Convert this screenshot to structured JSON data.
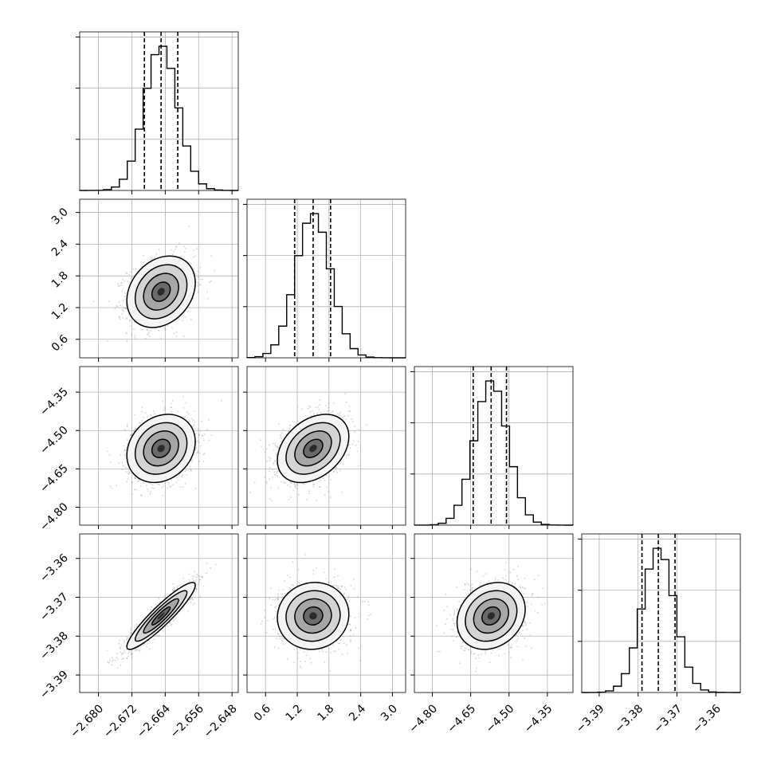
{
  "chart_data": {
    "type": "corner",
    "grid": true,
    "colors": {
      "line": "#000000",
      "grid": "#b0b0b0",
      "points": "#777777"
    },
    "parameters": [
      {
        "range": [
          -2.6845,
          -2.6465
        ],
        "ticks": [
          -2.68,
          -2.672,
          -2.664,
          -2.656,
          -2.648
        ],
        "tick_labels": [
          "−2.680",
          "−2.672",
          "−2.664",
          "−2.656",
          "−2.648"
        ],
        "center": -2.665,
        "sigma": 0.004,
        "quantiles": [
          -2.669,
          -2.665,
          -2.661
        ]
      },
      {
        "range": [
          0.25,
          3.25
        ],
        "ticks": [
          0.6,
          1.2,
          1.8,
          2.4,
          3.0
        ],
        "tick_labels": [
          "0.6",
          "1.2",
          "1.8",
          "2.4",
          "3.0"
        ],
        "center": 1.5,
        "sigma": 0.33,
        "quantiles": [
          1.15,
          1.5,
          1.83
        ]
      },
      {
        "range": [
          -4.87,
          -4.25
        ],
        "ticks": [
          -4.8,
          -4.65,
          -4.5,
          -4.35
        ],
        "tick_labels": [
          "−4.80",
          "−4.65",
          "−4.50",
          "−4.35"
        ],
        "center": -4.57,
        "sigma": 0.065,
        "quantiles": [
          -4.64,
          -4.57,
          -4.51
        ]
      },
      {
        "range": [
          -3.3945,
          -3.3537
        ],
        "ticks": [
          -3.39,
          -3.38,
          -3.37,
          -3.36
        ],
        "tick_labels": [
          "−3.39",
          "−3.38",
          "−3.37",
          "−3.36"
        ],
        "center": -3.3748,
        "sigma": 0.0042,
        "quantiles": [
          -3.379,
          -3.3748,
          -3.3705
        ]
      }
    ],
    "correlations": [
      {
        "pair": [
          1,
          0
        ],
        "rho": 0.25
      },
      {
        "pair": [
          2,
          0
        ],
        "rho": 0.2
      },
      {
        "pair": [
          2,
          1
        ],
        "rho": 0.35
      },
      {
        "pair": [
          3,
          0
        ],
        "rho": 0.92
      },
      {
        "pair": [
          3,
          1
        ],
        "rho": 0.05
      },
      {
        "pair": [
          3,
          2
        ],
        "rho": 0.2
      }
    ]
  }
}
